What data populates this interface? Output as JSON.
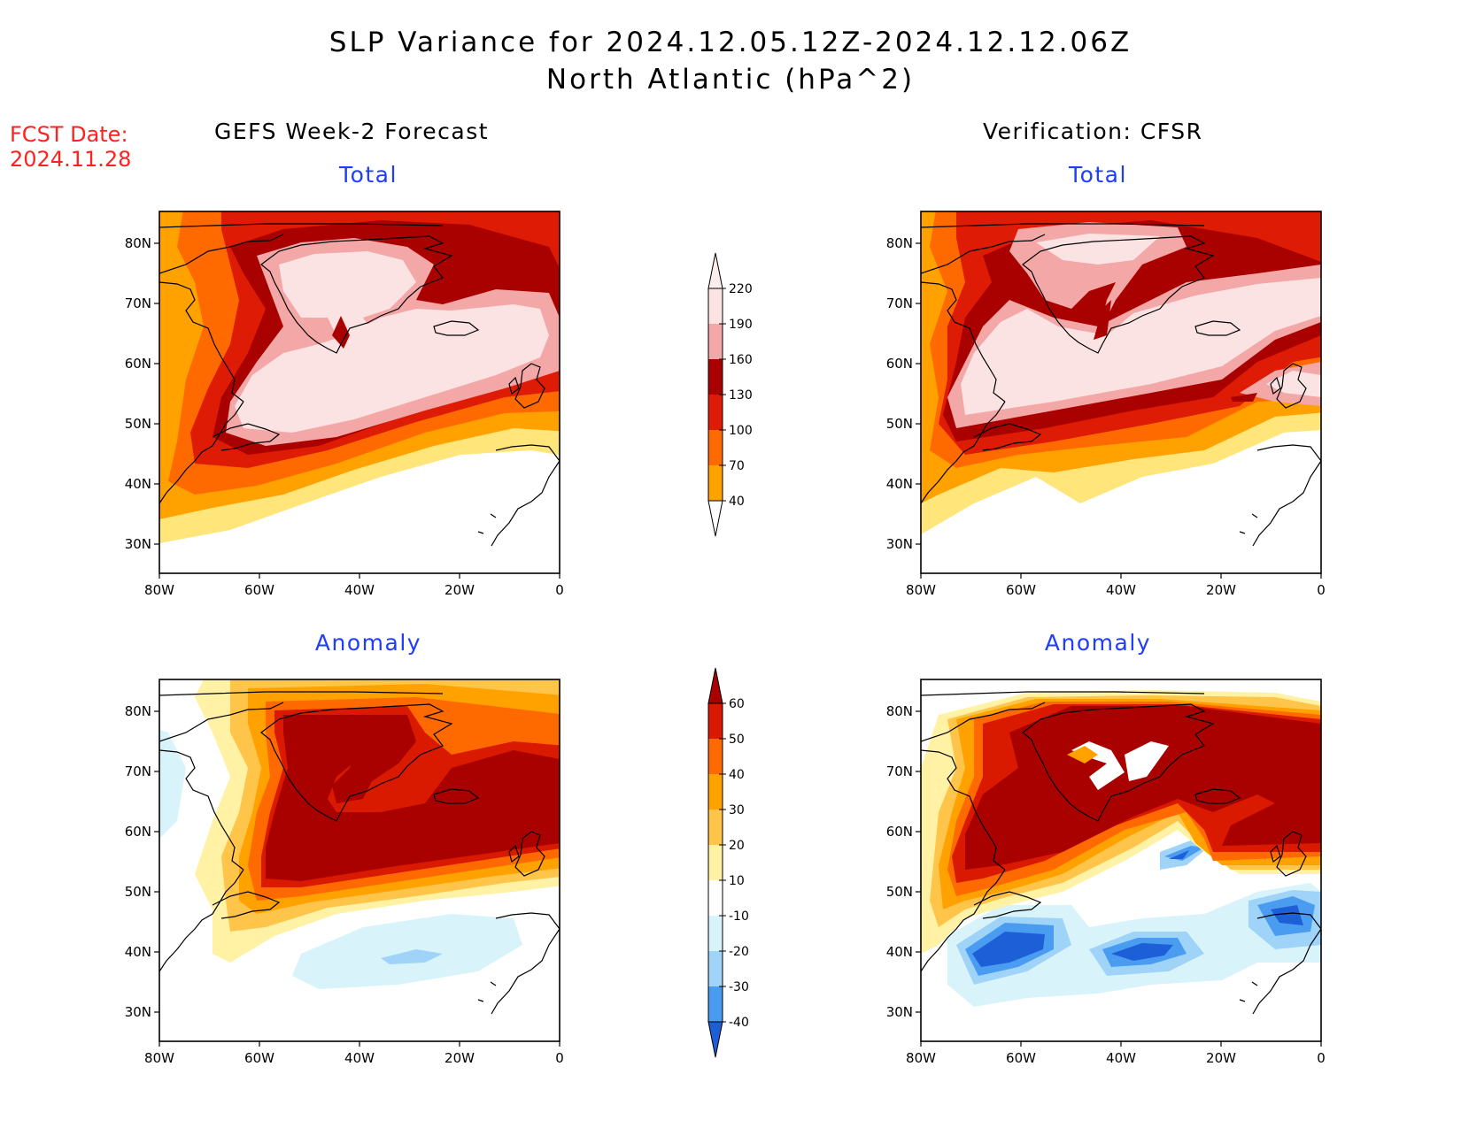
{
  "title_line1": "SLP Variance for 2024.12.05.12Z-2024.12.12.06Z",
  "title_line2": "North Atlantic (hPa^2)",
  "fcst_label": "FCST Date:",
  "fcst_date": "2024.11.28",
  "left_column_title": "GEFS Week-2 Forecast",
  "right_column_title": "Verification: CFSR",
  "panels": {
    "forecast_total": "Total",
    "verification_total": "Total",
    "forecast_anomaly": "Anomaly",
    "verification_anomaly": "Anomaly"
  },
  "axes": {
    "lon_labels": [
      "80W",
      "60W",
      "40W",
      "20W",
      "0"
    ],
    "lat_labels": [
      "80N",
      "70N",
      "60N",
      "50N",
      "40N",
      "30N"
    ]
  },
  "total_colorbar": {
    "levels": [
      "220",
      "190",
      "160",
      "130",
      "100",
      "70",
      "40"
    ],
    "colors": [
      "#fbe3e3",
      "#f3a7a7",
      "#a90000",
      "#de1b05",
      "#ff6a00",
      "#ffa200",
      "#ffe57a"
    ]
  },
  "anomaly_colorbar": {
    "levels": [
      "60",
      "50",
      "40",
      "30",
      "20",
      "10",
      "-10",
      "-20",
      "-30",
      "-40"
    ],
    "colors": [
      "#a90000",
      "#d91a00",
      "#ff6a00",
      "#ffa200",
      "#ffc54a",
      "#fff2a5",
      "#ffffff",
      "#d9f3fb",
      "#9fd4f8",
      "#4a9cf0",
      "#1d5fd6"
    ]
  }
}
